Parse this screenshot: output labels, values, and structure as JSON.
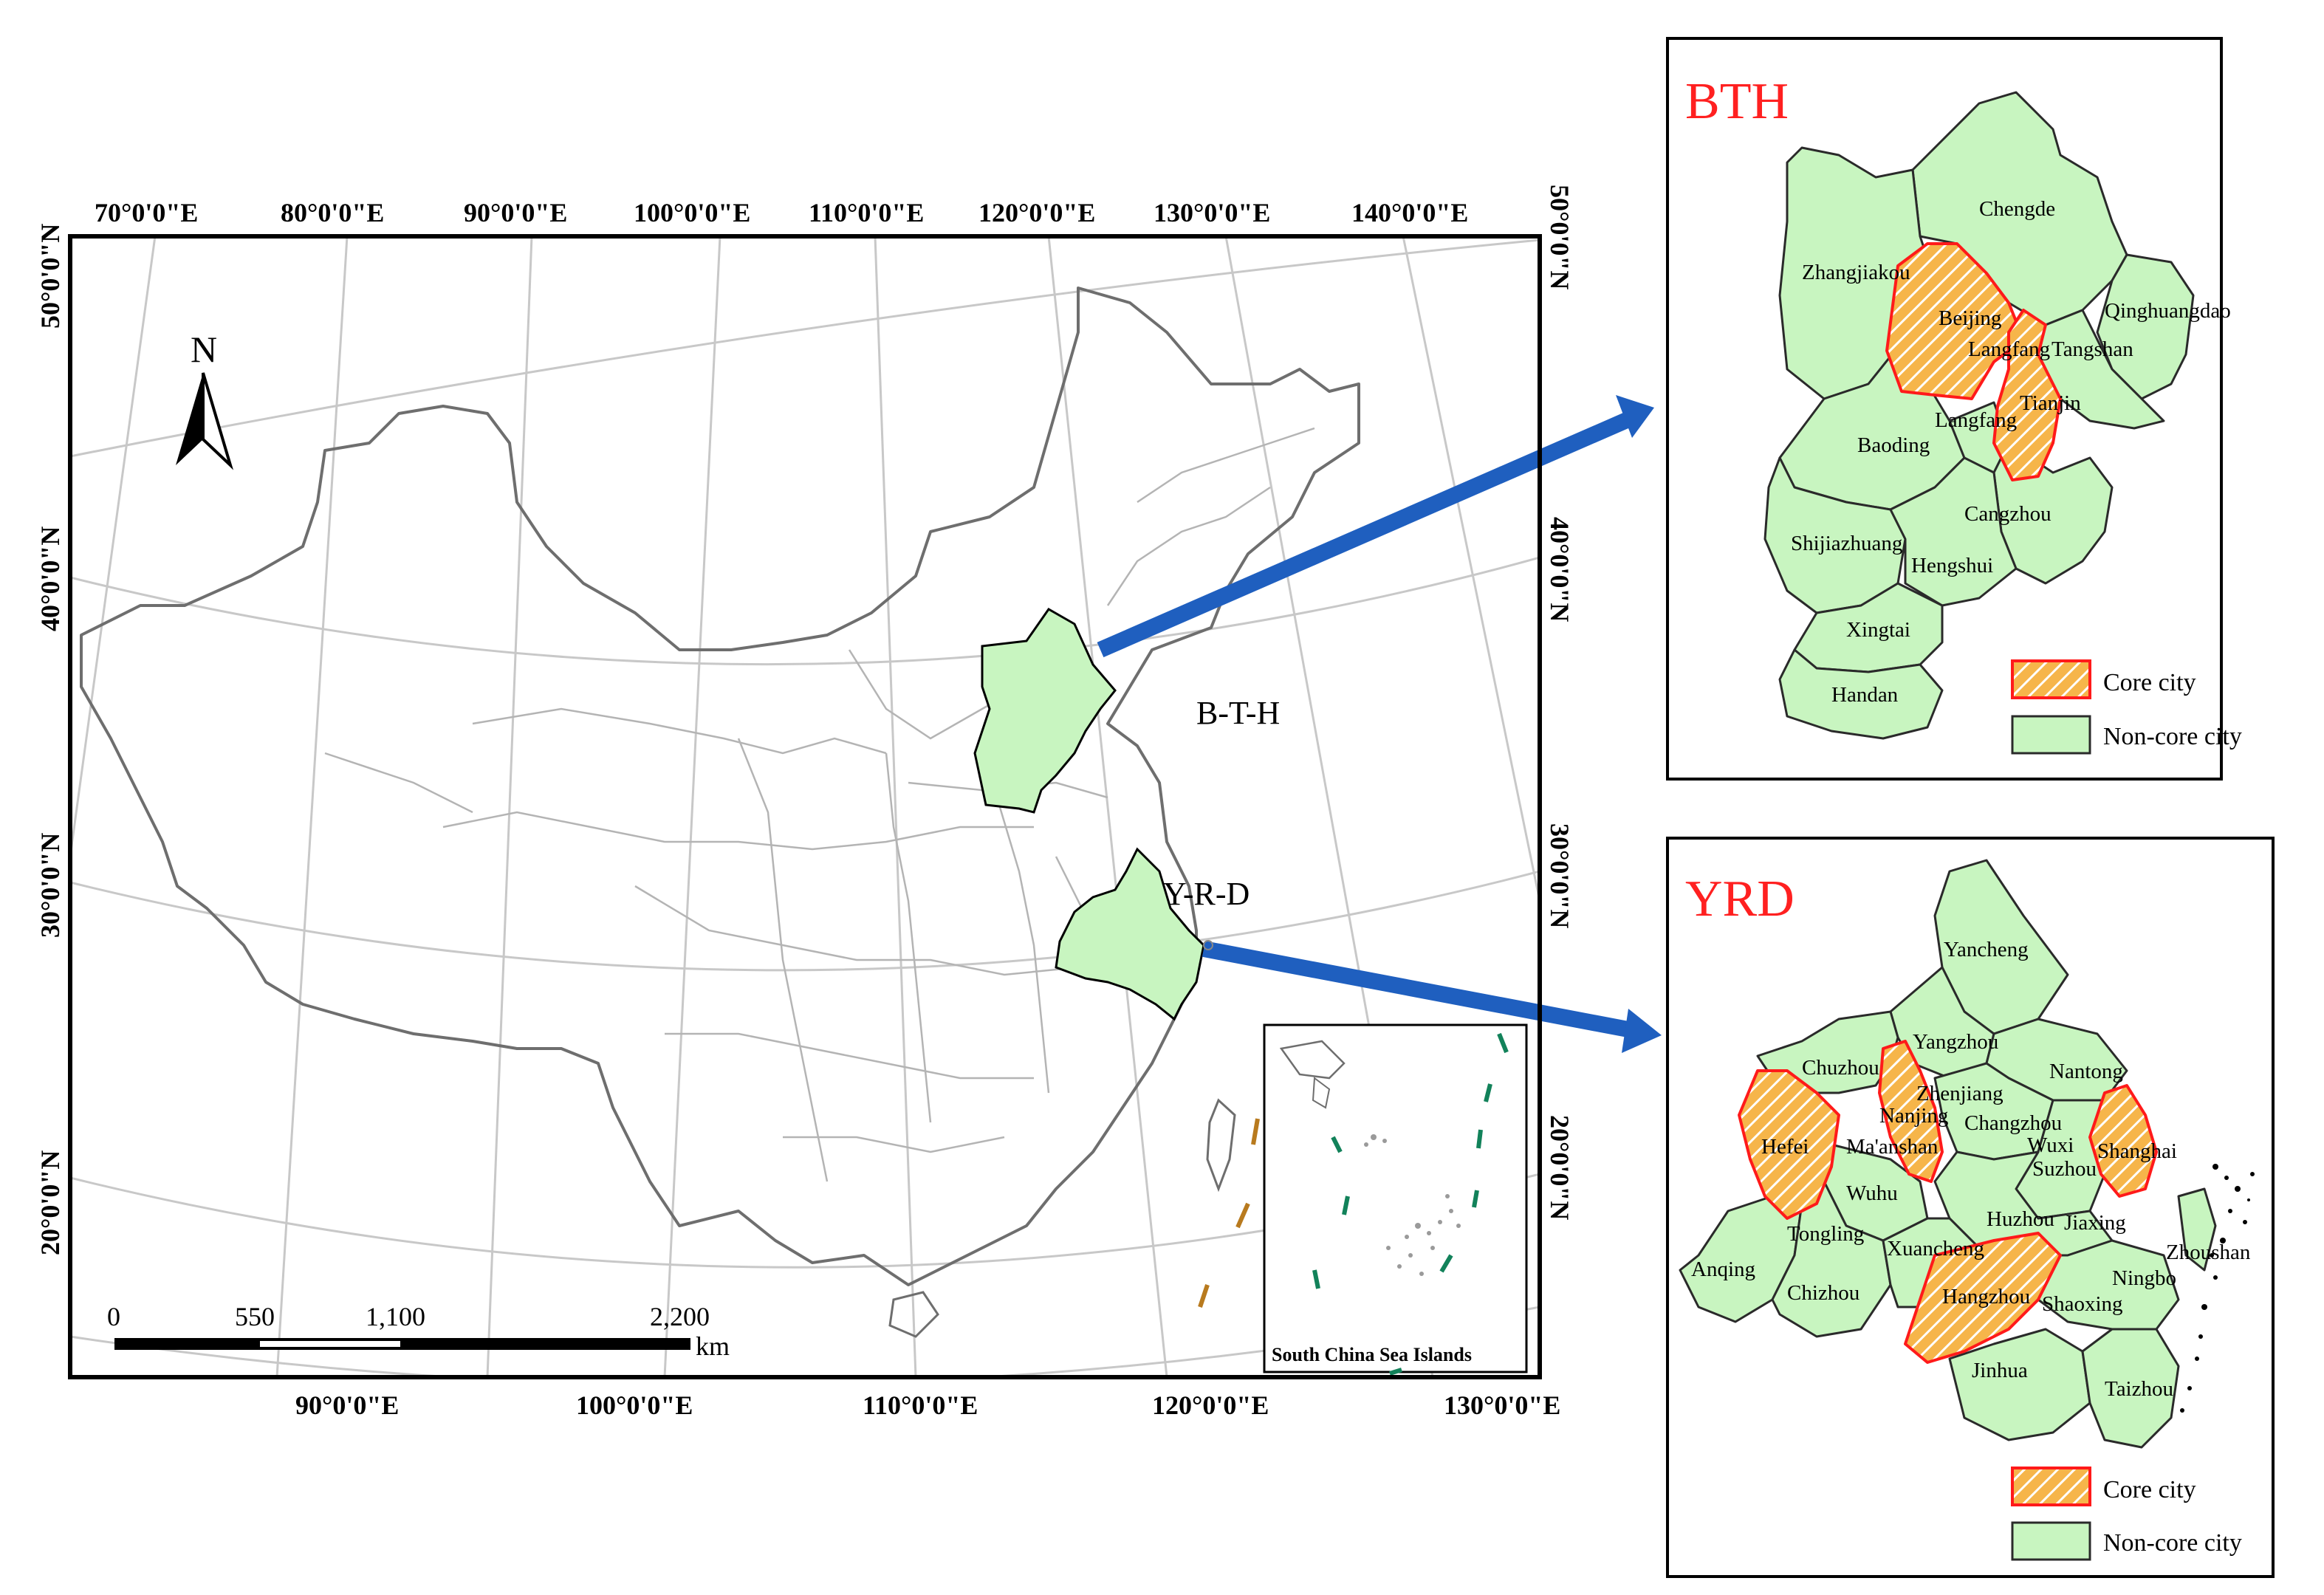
{
  "main_map": {
    "top_lon_labels": [
      "70°0'0\"E",
      "80°0'0\"E",
      "90°0'0\"E",
      "100°0'0\"E",
      "110°0'0\"E",
      "120°0'0\"E",
      "130°0'0\"E",
      "140°0'0\"E"
    ],
    "bottom_lon_labels": [
      "90°0'0\"E",
      "100°0'0\"E",
      "110°0'0\"E",
      "120°0'0\"E",
      "130°0'0\"E"
    ],
    "left_lat_labels": [
      "50°0'0\"N",
      "40°0'0\"N",
      "30°0'0\"N",
      "20°0'0\"N"
    ],
    "right_lat_labels": [
      "50°0'0\"N",
      "40°0'0\"N",
      "30°0'0\"N",
      "20°0'0\"N"
    ],
    "north_arrow": "N",
    "region_labels": {
      "bth": "B-T-H",
      "yrd": "Y-R-D"
    },
    "inset_label": "South China Sea Islands",
    "scale_bar": {
      "ticks": [
        "0",
        "550",
        "1,100",
        "2,200"
      ],
      "unit": "km"
    }
  },
  "bth_panel": {
    "title": "BTH",
    "cities": [
      "Chengde",
      "Zhangjiakou",
      "Qinghuangdao",
      "Beijing",
      "Langfang",
      "Tangshan",
      "Tianjin",
      "Langfang",
      "Baoding",
      "Cangzhou",
      "Shijiazhuang",
      "Hengshui",
      "Xingtai",
      "Handan"
    ],
    "legend": {
      "core": "Core city",
      "noncore": "Non-core city"
    }
  },
  "yrd_panel": {
    "title": "YRD",
    "cities": [
      "Yancheng",
      "Yangzhou",
      "Chuzhou",
      "Nantong",
      "Zhenjiang",
      "Nanjing",
      "Changzhou",
      "Hefei",
      "Ma'anshan",
      "Wuxi",
      "Suzhou",
      "Shanghai",
      "Wuhu",
      "Jiaxing",
      "Huzhou",
      "Tongling",
      "Zhoushan",
      "Xuancheng",
      "Anqing",
      "Chizhou",
      "Ningbo",
      "Hangzhou",
      "Shaoxing",
      "Jinhua",
      "Taizhou"
    ],
    "legend": {
      "core": "Core city",
      "noncore": "Non-core city"
    }
  },
  "colors": {
    "region_fill": "#c8f5c0",
    "core_hatch": "#f5a623",
    "core_border": "#ff1a1a",
    "arrow": "#1f5fbf",
    "title_red": "#ff2020",
    "grid": "#c8c8c8",
    "province_line": "#b4b4b4",
    "border_line": "#6e6e6e"
  }
}
